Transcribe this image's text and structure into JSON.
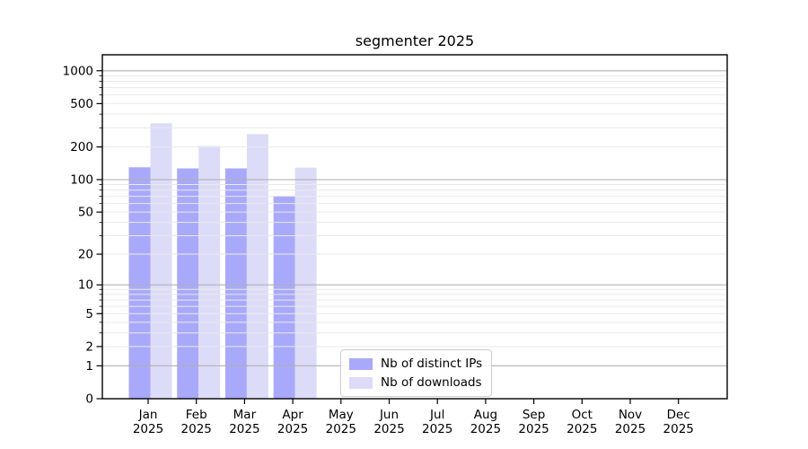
{
  "title": "segmenter 2025",
  "chart_data": {
    "type": "bar",
    "title": "segmenter 2025",
    "yscale": "log1p",
    "ylim": [
      0,
      1400
    ],
    "y_ticks": [
      0,
      1,
      2,
      5,
      10,
      20,
      50,
      100,
      200,
      500,
      1000
    ],
    "grid": true,
    "categories": [
      "Jan",
      "Feb",
      "Mar",
      "Apr",
      "May",
      "Jun",
      "Jul",
      "Aug",
      "Sep",
      "Oct",
      "Nov",
      "Dec"
    ],
    "x_sub_label": "2025",
    "series": [
      {
        "name": "Nb of distinct IPs",
        "color": "#a9a9fb",
        "values": [
          130,
          127,
          127,
          71,
          0,
          0,
          0,
          0,
          0,
          0,
          0,
          0
        ]
      },
      {
        "name": "Nb of downloads",
        "color": "#dcdcf9",
        "values": [
          330,
          204,
          262,
          129,
          0,
          0,
          0,
          0,
          0,
          0,
          0,
          0
        ]
      }
    ],
    "legend_position": "lower center",
    "colors": {
      "major_grid": "#b0b0b0",
      "minor_grid": "#e9e9e9",
      "spine": "#000000",
      "background": "#ffffff"
    }
  }
}
